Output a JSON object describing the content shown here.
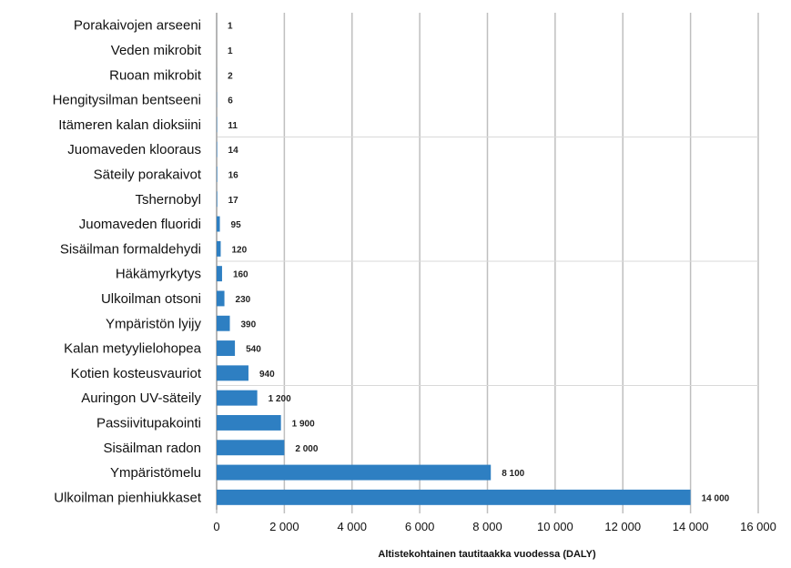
{
  "chart_data": {
    "type": "bar",
    "orientation": "horizontal",
    "categories": [
      "Porakaivojen arseeni",
      "Veden mikrobit",
      "Ruoan mikrobit",
      "Hengitysilman bentseeni",
      "Itämeren kalan dioksiini",
      "Juomaveden klooraus",
      "Säteily porakaivot",
      "Tshernobyl",
      "Juomaveden fluoridi",
      "Sisäilman formaldehydi",
      "Häkämyrkytys",
      "Ulkoilman otsoni",
      "Ympäristön lyijy",
      "Kalan metyylielohopea",
      "Kotien kosteusvauriot",
      "Auringon UV-säteily",
      "Passiivitupakointi",
      "Sisäilman radon",
      "Ympäristömelu",
      "Ulkoilman pienhiukkaset"
    ],
    "values": [
      1,
      1,
      2,
      6,
      11,
      14,
      16,
      17,
      95,
      120,
      160,
      230,
      390,
      540,
      940,
      1200,
      1900,
      2000,
      8100,
      14000
    ],
    "data_labels": [
      "1",
      "1",
      "2",
      "6",
      "11",
      "14",
      "16",
      "17",
      "95",
      "120",
      "160",
      "230",
      "390",
      "540",
      "940",
      "1 200",
      "1 900",
      "2 000",
      "8 100",
      "14 000"
    ],
    "xlabel": "Altistekohtainen tautitaakka vuodessa (DALY)",
    "xlim": [
      0,
      16000
    ],
    "xticks": [
      0,
      2000,
      4000,
      6000,
      8000,
      10000,
      12000,
      14000,
      16000
    ],
    "xtick_labels": [
      "0",
      "2 000",
      "4 000",
      "6 000",
      "8 000",
      "10 000",
      "12 000",
      "14 000",
      "16 000"
    ],
    "grid": "vertical",
    "bar_color": "#2e7fc2",
    "grid_color": "#bfbfbf"
  }
}
